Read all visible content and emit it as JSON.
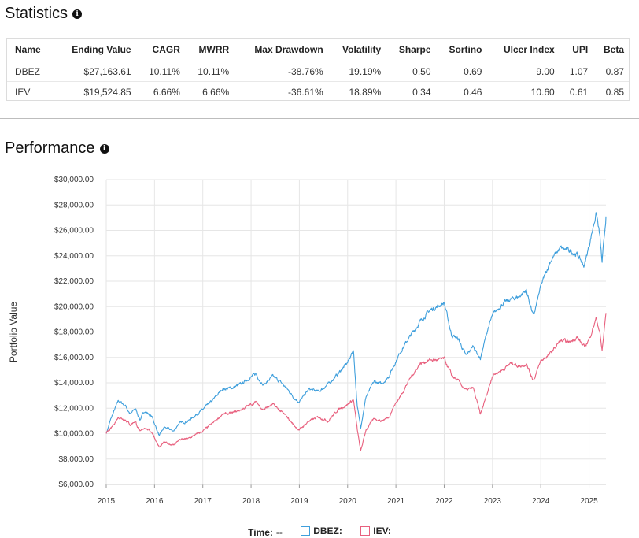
{
  "statistics": {
    "title": "Statistics",
    "info_icon": "info-icon",
    "columns": [
      "Name",
      "Ending Value",
      "CAGR",
      "MWRR",
      "Max Drawdown",
      "Volatility",
      "Sharpe",
      "Sortino",
      "Ulcer Index",
      "UPI",
      "Beta"
    ],
    "rows": [
      [
        "DBEZ",
        "$27,163.61",
        "10.11%",
        "10.11%",
        "-38.76%",
        "19.19%",
        "0.50",
        "0.69",
        "9.00",
        "1.07",
        "0.87"
      ],
      [
        "IEV",
        "$19,524.85",
        "6.66%",
        "6.66%",
        "-36.61%",
        "18.89%",
        "0.34",
        "0.46",
        "10.60",
        "0.61",
        "0.85"
      ]
    ]
  },
  "performance": {
    "title": "Performance",
    "info_icon": "info-icon"
  },
  "legend": {
    "time_label": "Time:",
    "time_value": "--",
    "dbez_label": "DBEZ:",
    "iev_label": "IEV:"
  },
  "chart_data": {
    "type": "line",
    "ylabel": "Portfolio Value",
    "xlabel": "",
    "xlim": [
      2015.0,
      2025.35
    ],
    "ylim": [
      6000,
      30000
    ],
    "x_ticks": [
      "2015",
      "2016",
      "2017",
      "2018",
      "2019",
      "2020",
      "2021",
      "2022",
      "2023",
      "2024",
      "2025"
    ],
    "y_ticks": [
      "$6,000.00",
      "$8,000.00",
      "$10,000.00",
      "$12,000.00",
      "$14,000.00",
      "$16,000.00",
      "$18,000.00",
      "$20,000.00",
      "$22,000.00",
      "$24,000.00",
      "$26,000.00",
      "$28,000.00",
      "$30,000.00"
    ],
    "grid": true,
    "series": [
      {
        "name": "DBEZ",
        "color": "#3f9fdc",
        "points": [
          [
            2015.0,
            10000
          ],
          [
            2015.1,
            11200
          ],
          [
            2015.25,
            12600
          ],
          [
            2015.4,
            12200
          ],
          [
            2015.5,
            11500
          ],
          [
            2015.6,
            12000
          ],
          [
            2015.7,
            11100
          ],
          [
            2015.8,
            11800
          ],
          [
            2015.95,
            11300
          ],
          [
            2016.1,
            9800
          ],
          [
            2016.2,
            10500
          ],
          [
            2016.4,
            10200
          ],
          [
            2016.5,
            10800
          ],
          [
            2016.7,
            11000
          ],
          [
            2016.9,
            11600
          ],
          [
            2017.0,
            11900
          ],
          [
            2017.2,
            12600
          ],
          [
            2017.4,
            13500
          ],
          [
            2017.6,
            13600
          ],
          [
            2017.8,
            13900
          ],
          [
            2017.9,
            14200
          ],
          [
            2018.1,
            14700
          ],
          [
            2018.25,
            13800
          ],
          [
            2018.45,
            14500
          ],
          [
            2018.6,
            14100
          ],
          [
            2018.75,
            13500
          ],
          [
            2018.9,
            12800
          ],
          [
            2019.0,
            12500
          ],
          [
            2019.2,
            13500
          ],
          [
            2019.4,
            13300
          ],
          [
            2019.6,
            13900
          ],
          [
            2019.8,
            14700
          ],
          [
            2020.0,
            15600
          ],
          [
            2020.12,
            16600
          ],
          [
            2020.2,
            12100
          ],
          [
            2020.27,
            10500
          ],
          [
            2020.38,
            12900
          ],
          [
            2020.55,
            14100
          ],
          [
            2020.7,
            13900
          ],
          [
            2020.85,
            14500
          ],
          [
            2020.95,
            15300
          ],
          [
            2021.1,
            16500
          ],
          [
            2021.3,
            17700
          ],
          [
            2021.5,
            18800
          ],
          [
            2021.7,
            19700
          ],
          [
            2021.9,
            20100
          ],
          [
            2022.0,
            20300
          ],
          [
            2022.15,
            17800
          ],
          [
            2022.3,
            17400
          ],
          [
            2022.45,
            16100
          ],
          [
            2022.6,
            16900
          ],
          [
            2022.75,
            15900
          ],
          [
            2022.9,
            18200
          ],
          [
            2023.0,
            19300
          ],
          [
            2023.2,
            20200
          ],
          [
            2023.4,
            20600
          ],
          [
            2023.55,
            20800
          ],
          [
            2023.7,
            21300
          ],
          [
            2023.85,
            19200
          ],
          [
            2024.0,
            21600
          ],
          [
            2024.2,
            23600
          ],
          [
            2024.4,
            24600
          ],
          [
            2024.6,
            24400
          ],
          [
            2024.75,
            24100
          ],
          [
            2024.9,
            23200
          ],
          [
            2025.0,
            24800
          ],
          [
            2025.15,
            27400
          ],
          [
            2025.22,
            25600
          ],
          [
            2025.27,
            23400
          ],
          [
            2025.35,
            27100
          ]
        ]
      },
      {
        "name": "IEV",
        "color": "#e8607e",
        "points": [
          [
            2015.0,
            10000
          ],
          [
            2015.1,
            10400
          ],
          [
            2015.25,
            11300
          ],
          [
            2015.4,
            11100
          ],
          [
            2015.5,
            10700
          ],
          [
            2015.6,
            11000
          ],
          [
            2015.7,
            10100
          ],
          [
            2015.8,
            10500
          ],
          [
            2015.95,
            10100
          ],
          [
            2016.1,
            8900
          ],
          [
            2016.2,
            9300
          ],
          [
            2016.4,
            9100
          ],
          [
            2016.5,
            9500
          ],
          [
            2016.7,
            9600
          ],
          [
            2016.9,
            10000
          ],
          [
            2017.0,
            10200
          ],
          [
            2017.2,
            10800
          ],
          [
            2017.4,
            11500
          ],
          [
            2017.6,
            11600
          ],
          [
            2017.8,
            11900
          ],
          [
            2017.9,
            12100
          ],
          [
            2018.1,
            12500
          ],
          [
            2018.25,
            11900
          ],
          [
            2018.45,
            12300
          ],
          [
            2018.6,
            11800
          ],
          [
            2018.75,
            11300
          ],
          [
            2018.9,
            10600
          ],
          [
            2019.0,
            10300
          ],
          [
            2019.2,
            11000
          ],
          [
            2019.4,
            11300
          ],
          [
            2019.6,
            11000
          ],
          [
            2019.8,
            11900
          ],
          [
            2020.0,
            12300
          ],
          [
            2020.12,
            12700
          ],
          [
            2020.2,
            10300
          ],
          [
            2020.27,
            8600
          ],
          [
            2020.38,
            10300
          ],
          [
            2020.55,
            11200
          ],
          [
            2020.7,
            11000
          ],
          [
            2020.85,
            11300
          ],
          [
            2020.95,
            12100
          ],
          [
            2021.1,
            13000
          ],
          [
            2021.3,
            14400
          ],
          [
            2021.5,
            15500
          ],
          [
            2021.7,
            15800
          ],
          [
            2021.9,
            15800
          ],
          [
            2022.0,
            15900
          ],
          [
            2022.15,
            14600
          ],
          [
            2022.3,
            14100
          ],
          [
            2022.45,
            13400
          ],
          [
            2022.6,
            13600
          ],
          [
            2022.75,
            11500
          ],
          [
            2022.9,
            13300
          ],
          [
            2023.0,
            14600
          ],
          [
            2023.2,
            15000
          ],
          [
            2023.4,
            15600
          ],
          [
            2023.55,
            15300
          ],
          [
            2023.7,
            15500
          ],
          [
            2023.85,
            14200
          ],
          [
            2024.0,
            15700
          ],
          [
            2024.2,
            16300
          ],
          [
            2024.4,
            17300
          ],
          [
            2024.6,
            17200
          ],
          [
            2024.75,
            17600
          ],
          [
            2024.9,
            16800
          ],
          [
            2025.0,
            17400
          ],
          [
            2025.15,
            19100
          ],
          [
            2025.22,
            18000
          ],
          [
            2025.27,
            16500
          ],
          [
            2025.35,
            19500
          ]
        ]
      }
    ]
  }
}
